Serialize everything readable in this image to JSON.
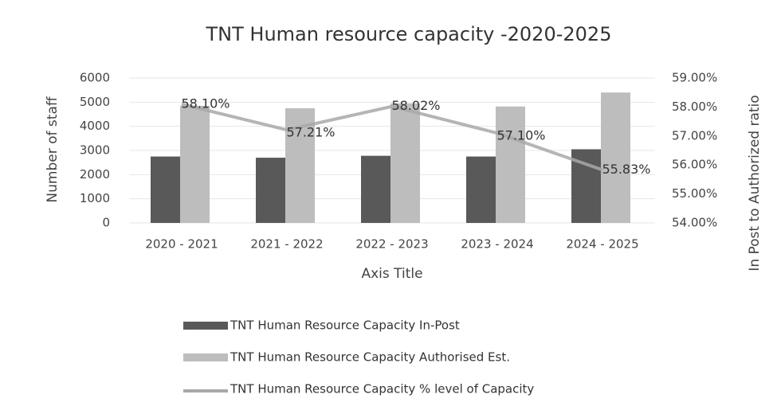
{
  "chart_data": {
    "type": "bar",
    "title": "TNT Human resource capacity -2020-2025",
    "x_label": "Axis Title",
    "y_label": "Number of staff",
    "y2_label": "In Post to Authorized ratio",
    "categories": [
      "2020 - 2021",
      "2021 - 2022",
      "2022 - 2023",
      "2023 - 2024",
      "2024 - 2025"
    ],
    "series": [
      {
        "name": "TNT Human Resource Capacity In-Post",
        "type": "bar",
        "color": "#595959",
        "values": [
          2750,
          2700,
          2780,
          2750,
          3050
        ]
      },
      {
        "name": "TNT Human Resource Capacity Authorised Est.",
        "type": "bar",
        "color": "#bdbdbd",
        "values": [
          4850,
          4750,
          4950,
          4820,
          5400
        ]
      },
      {
        "name": "TNT Human Resource Capacity % level of Capacity",
        "type": "line",
        "axis": "y2",
        "color": "#a8a8a8",
        "values": [
          58.1,
          57.21,
          58.02,
          57.1,
          55.83
        ],
        "value_labels": [
          "58.10%",
          "57.21%",
          "58.02%",
          "57.10%",
          "55.83%"
        ]
      }
    ],
    "ylim": [
      0,
      6000
    ],
    "yticks": [
      0,
      1000,
      2000,
      3000,
      4000,
      5000,
      6000
    ],
    "y2lim": [
      54,
      59
    ],
    "y2ticks": [
      {
        "value": 54,
        "label": "54.00%"
      },
      {
        "value": 55,
        "label": "55.00%"
      },
      {
        "value": 56,
        "label": "56.00%"
      },
      {
        "value": 57,
        "label": "57.00%"
      },
      {
        "value": 58,
        "label": "58.00%"
      },
      {
        "value": 59,
        "label": "59.00%"
      }
    ],
    "grid": true,
    "legend": "bottom"
  }
}
